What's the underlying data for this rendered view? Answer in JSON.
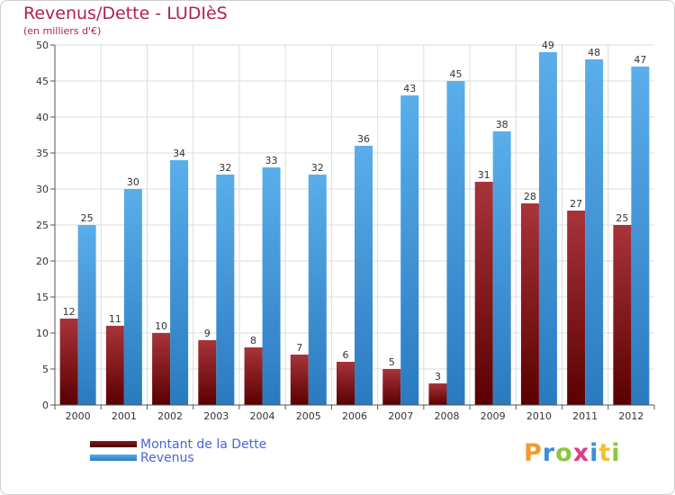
{
  "header": {
    "title": "Revenus/Dette - LUDIèS",
    "subtitle": "(en milliers d'€)"
  },
  "legend": {
    "items": [
      {
        "label": "Montant de la Dette",
        "color": "#7a1010"
      },
      {
        "label": "Revenus",
        "color": "#3f95dc"
      }
    ]
  },
  "logo": {
    "text": "Proxiti",
    "letters": [
      {
        "ch": "P",
        "color": "#f29a2e"
      },
      {
        "ch": "r",
        "color": "#3a8ed8"
      },
      {
        "ch": "o",
        "color": "#8cc63f"
      },
      {
        "ch": "x",
        "color": "#e03a8a"
      },
      {
        "ch": "i",
        "color": "#3a8ed8"
      },
      {
        "ch": "t",
        "color": "#f2c12e"
      },
      {
        "ch": "i",
        "color": "#8cc63f"
      }
    ]
  },
  "chart_data": {
    "type": "bar",
    "categories": [
      "2000",
      "2001",
      "2002",
      "2003",
      "2004",
      "2005",
      "2006",
      "2007",
      "2008",
      "2009",
      "2010",
      "2011",
      "2012"
    ],
    "series": [
      {
        "name": "Montant de la Dette",
        "color": "#7a1010",
        "values": [
          12,
          11,
          10,
          9,
          8,
          7,
          6,
          5,
          3,
          31,
          28,
          27,
          25
        ]
      },
      {
        "name": "Revenus",
        "color": "#3f95dc",
        "values": [
          25,
          30,
          34,
          32,
          33,
          32,
          36,
          43,
          45,
          38,
          49,
          48,
          47
        ]
      }
    ],
    "title": "Revenus/Dette - LUDIèS",
    "subtitle": "(en milliers d'€)",
    "ylim": [
      0,
      50
    ],
    "yticks": [
      0,
      5,
      10,
      15,
      20,
      25,
      30,
      35,
      40,
      45,
      50
    ],
    "grid": true,
    "legend_position": "bottom-left"
  }
}
